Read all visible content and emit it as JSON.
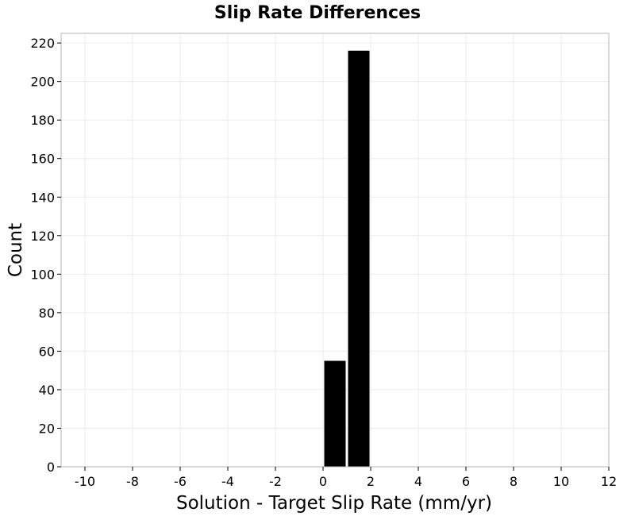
{
  "chart_data": {
    "type": "bar",
    "title": "Slip Rate Differences",
    "xlabel": "Solution - Target Slip Rate (mm/yr)",
    "ylabel": "Count",
    "xlim": [
      -11,
      12
    ],
    "ylim": [
      0,
      225
    ],
    "x_ticks": [
      -10,
      -8,
      -6,
      -4,
      -2,
      0,
      2,
      4,
      6,
      8,
      10,
      12
    ],
    "y_ticks": [
      0,
      20,
      40,
      60,
      80,
      100,
      120,
      140,
      160,
      180,
      200,
      220
    ],
    "grid": true,
    "bars": [
      {
        "x_start": 0,
        "x_end": 1,
        "value": 55
      },
      {
        "x_start": 1,
        "x_end": 2,
        "value": 216
      }
    ],
    "colors": {
      "bar": "#000000",
      "grid": "#ebebeb",
      "frame": "#b4b4b4",
      "background": "#ffffff"
    }
  }
}
